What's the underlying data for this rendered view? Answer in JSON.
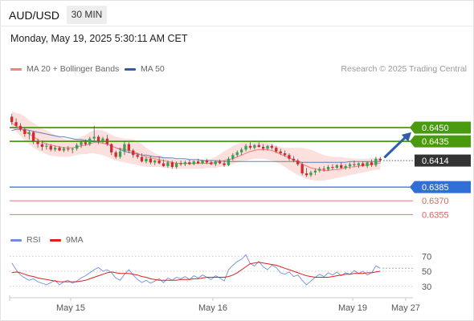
{
  "header": {
    "symbol": "AUD/USD",
    "timeframe": "30 MIN"
  },
  "datetime": "Monday, May 19, 2025 5:30:11 AM CET",
  "legend": {
    "ma20": {
      "label": "MA 20 + Bollinger Bands",
      "color": "#f4837d"
    },
    "ma50": {
      "label": "MA 50",
      "color": "#2e5fa8"
    },
    "rsi": {
      "label": "RSI",
      "color": "#6f8fe0"
    },
    "ma9": {
      "label": "9MA",
      "color": "#e02020"
    }
  },
  "credit": "Research © 2025 Trading Central",
  "chart_data": {
    "type": "candlestick",
    "price_range": [
      0.6343,
      0.6486
    ],
    "x_labels": [
      "May 15",
      "May 16",
      "May 19",
      "May 27"
    ],
    "candles": [
      [
        0.6462,
        0.6465,
        0.6453,
        0.6456
      ],
      [
        0.6456,
        0.646,
        0.645,
        0.6452
      ],
      [
        0.6452,
        0.6455,
        0.6446,
        0.6448
      ],
      [
        0.6448,
        0.645,
        0.644,
        0.6443
      ],
      [
        0.6443,
        0.6447,
        0.6437,
        0.6445
      ],
      [
        0.6445,
        0.6446,
        0.6432,
        0.6435
      ],
      [
        0.6435,
        0.6438,
        0.6428,
        0.6432
      ],
      [
        0.6432,
        0.6436,
        0.6425,
        0.6429
      ],
      [
        0.6429,
        0.6433,
        0.6426,
        0.643
      ],
      [
        0.643,
        0.6432,
        0.6424,
        0.6426
      ],
      [
        0.6426,
        0.643,
        0.6424,
        0.6428
      ],
      [
        0.6428,
        0.643,
        0.6424,
        0.6425
      ],
      [
        0.6425,
        0.6429,
        0.6423,
        0.6427
      ],
      [
        0.6427,
        0.643,
        0.6424,
        0.6426
      ],
      [
        0.6426,
        0.6428,
        0.6422,
        0.6427
      ],
      [
        0.6427,
        0.6433,
        0.6425,
        0.6431
      ],
      [
        0.6431,
        0.6436,
        0.6428,
        0.6434
      ],
      [
        0.6434,
        0.6437,
        0.643,
        0.6432
      ],
      [
        0.6432,
        0.644,
        0.643,
        0.6438
      ],
      [
        0.6438,
        0.6452,
        0.6435,
        0.644
      ],
      [
        0.644,
        0.6442,
        0.6432,
        0.6435
      ],
      [
        0.6435,
        0.644,
        0.6433,
        0.6438
      ],
      [
        0.6438,
        0.6442,
        0.643,
        0.6432
      ],
      [
        0.6432,
        0.6433,
        0.642,
        0.6423
      ],
      [
        0.6423,
        0.6425,
        0.6416,
        0.6418
      ],
      [
        0.6418,
        0.6428,
        0.6416,
        0.6424
      ],
      [
        0.6424,
        0.6435,
        0.642,
        0.6432
      ],
      [
        0.6432,
        0.6434,
        0.6422,
        0.6425
      ],
      [
        0.6425,
        0.6427,
        0.6417,
        0.642
      ],
      [
        0.642,
        0.6422,
        0.6416,
        0.6418
      ],
      [
        0.6418,
        0.6422,
        0.6412,
        0.6413
      ],
      [
        0.6413,
        0.6418,
        0.6411,
        0.6416
      ],
      [
        0.6416,
        0.6419,
        0.641,
        0.6412
      ],
      [
        0.6412,
        0.6415,
        0.6409,
        0.6414
      ],
      [
        0.6414,
        0.6418,
        0.641,
        0.6411
      ],
      [
        0.6411,
        0.6415,
        0.6407,
        0.6408
      ],
      [
        0.6408,
        0.6414,
        0.6406,
        0.6412
      ],
      [
        0.6412,
        0.6414,
        0.6405,
        0.6407
      ],
      [
        0.6407,
        0.6413,
        0.6405,
        0.6411
      ],
      [
        0.6411,
        0.6414,
        0.6408,
        0.641
      ],
      [
        0.641,
        0.6414,
        0.6408,
        0.6412
      ],
      [
        0.6412,
        0.6415,
        0.6409,
        0.641
      ],
      [
        0.641,
        0.6414,
        0.6409,
        0.6413
      ],
      [
        0.6413,
        0.6416,
        0.641,
        0.6411
      ],
      [
        0.6411,
        0.6415,
        0.641,
        0.6414
      ],
      [
        0.6414,
        0.6416,
        0.641,
        0.6412
      ],
      [
        0.6412,
        0.6414,
        0.6409,
        0.641
      ],
      [
        0.641,
        0.6414,
        0.6408,
        0.6413
      ],
      [
        0.6413,
        0.6415,
        0.641,
        0.6411
      ],
      [
        0.6411,
        0.6414,
        0.6407,
        0.6409
      ],
      [
        0.6409,
        0.6418,
        0.6408,
        0.6416
      ],
      [
        0.6416,
        0.6422,
        0.6414,
        0.642
      ],
      [
        0.642,
        0.6425,
        0.6418,
        0.6423
      ],
      [
        0.6423,
        0.6428,
        0.642,
        0.6426
      ],
      [
        0.6426,
        0.6432,
        0.6424,
        0.643
      ],
      [
        0.643,
        0.6434,
        0.6426,
        0.6428
      ],
      [
        0.6428,
        0.6432,
        0.6426,
        0.6431
      ],
      [
        0.6431,
        0.6434,
        0.6428,
        0.6429
      ],
      [
        0.6429,
        0.6432,
        0.6425,
        0.6427
      ],
      [
        0.6427,
        0.6431,
        0.6425,
        0.643
      ],
      [
        0.643,
        0.6432,
        0.6426,
        0.6428
      ],
      [
        0.6428,
        0.643,
        0.6422,
        0.6424
      ],
      [
        0.6424,
        0.6427,
        0.642,
        0.6422
      ],
      [
        0.6422,
        0.6425,
        0.6418,
        0.642
      ],
      [
        0.642,
        0.6422,
        0.6414,
        0.6416
      ],
      [
        0.6416,
        0.6419,
        0.6412,
        0.6414
      ],
      [
        0.6414,
        0.6416,
        0.6408,
        0.641
      ],
      [
        0.641,
        0.6412,
        0.6398,
        0.64
      ],
      [
        0.64,
        0.6406,
        0.6396,
        0.6398
      ],
      [
        0.6398,
        0.6403,
        0.6396,
        0.6401
      ],
      [
        0.6401,
        0.6405,
        0.6398,
        0.6403
      ],
      [
        0.6403,
        0.6407,
        0.6401,
        0.6405
      ],
      [
        0.6405,
        0.6408,
        0.6402,
        0.6404
      ],
      [
        0.6404,
        0.6409,
        0.6403,
        0.6407
      ],
      [
        0.6407,
        0.641,
        0.6404,
        0.6406
      ],
      [
        0.6406,
        0.641,
        0.6405,
        0.6409
      ],
      [
        0.6409,
        0.6412,
        0.6405,
        0.6406
      ],
      [
        0.6406,
        0.641,
        0.6404,
        0.6408
      ],
      [
        0.6408,
        0.6412,
        0.6405,
        0.641
      ],
      [
        0.641,
        0.6414,
        0.6407,
        0.6409
      ],
      [
        0.6409,
        0.6412,
        0.6406,
        0.6411
      ],
      [
        0.6411,
        0.6413,
        0.6407,
        0.6408
      ],
      [
        0.6408,
        0.6413,
        0.6406,
        0.6412
      ],
      [
        0.6412,
        0.6415,
        0.6407,
        0.6409
      ],
      [
        0.6409,
        0.6418,
        0.6407,
        0.6416
      ],
      [
        0.6416,
        0.6418,
        0.6412,
        0.6414
      ]
    ],
    "ma20": [
      0.6455,
      0.6452,
      0.6449,
      0.6446,
      0.6443,
      0.644,
      0.6437,
      0.6434,
      0.6432,
      0.6431,
      0.643,
      0.6429,
      0.6428,
      0.6428,
      0.6428,
      0.6429,
      0.643,
      0.6431,
      0.6432,
      0.6434,
      0.6434,
      0.6433,
      0.6432,
      0.643,
      0.6428,
      0.6427,
      0.6426,
      0.6425,
      0.6424,
      0.6422,
      0.642,
      0.6418,
      0.6417,
      0.6416,
      0.6415,
      0.6414,
      0.6413,
      0.6412,
      0.6411,
      0.6411,
      0.6411,
      0.6411,
      0.6411,
      0.6411,
      0.6411,
      0.6411,
      0.6411,
      0.6412,
      0.6413,
      0.6414,
      0.6415,
      0.6416,
      0.6418,
      0.642,
      0.6422,
      0.6424,
      0.6425,
      0.6426,
      0.6426,
      0.6426,
      0.6425,
      0.6423,
      0.6421,
      0.6419,
      0.6417,
      0.6415,
      0.6413,
      0.641,
      0.6408,
      0.6406,
      0.6405,
      0.6404,
      0.6403,
      0.6403,
      0.6404,
      0.6404,
      0.6405,
      0.6406,
      0.6407,
      0.6407,
      0.6408,
      0.6409,
      0.6409,
      0.641,
      0.6411,
      0.6411
    ],
    "upper_band": [
      0.6468,
      0.6466,
      0.6465,
      0.6462,
      0.6458,
      0.6455,
      0.6452,
      0.6449,
      0.6447,
      0.6444,
      0.6442,
      0.644,
      0.6438,
      0.6437,
      0.6437,
      0.6438,
      0.644,
      0.6442,
      0.6445,
      0.6447,
      0.6448,
      0.6447,
      0.6445,
      0.6442,
      0.644,
      0.6439,
      0.6438,
      0.6438,
      0.6437,
      0.6435,
      0.6432,
      0.6428,
      0.6425,
      0.6422,
      0.642,
      0.6418,
      0.6417,
      0.6416,
      0.6415,
      0.6415,
      0.6415,
      0.6415,
      0.6415,
      0.6415,
      0.6415,
      0.6415,
      0.6416,
      0.6418,
      0.6421,
      0.6424,
      0.6427,
      0.643,
      0.6432,
      0.6434,
      0.6435,
      0.6436,
      0.6436,
      0.6436,
      0.6435,
      0.6434,
      0.6432,
      0.643,
      0.6429,
      0.6428,
      0.6428,
      0.6428,
      0.6428,
      0.6428,
      0.6427,
      0.6426,
      0.6424,
      0.6422,
      0.642,
      0.6419,
      0.6418,
      0.6418,
      0.6418,
      0.6417,
      0.6417,
      0.6416,
      0.6416,
      0.6416,
      0.6416,
      0.6417,
      0.6417,
      0.6417
    ],
    "lower_band": [
      0.645,
      0.6446,
      0.6441,
      0.6436,
      0.6432,
      0.6428,
      0.6425,
      0.6423,
      0.6421,
      0.6419,
      0.6419,
      0.6418,
      0.6418,
      0.6418,
      0.6419,
      0.642,
      0.6421,
      0.6421,
      0.6422,
      0.6422,
      0.6421,
      0.642,
      0.6418,
      0.6416,
      0.6414,
      0.6413,
      0.6412,
      0.6411,
      0.641,
      0.6409,
      0.6408,
      0.6407,
      0.6407,
      0.6407,
      0.6407,
      0.6406,
      0.6406,
      0.6405,
      0.6405,
      0.6405,
      0.6405,
      0.6405,
      0.6405,
      0.6405,
      0.6405,
      0.6406,
      0.6406,
      0.6406,
      0.6407,
      0.6408,
      0.6409,
      0.641,
      0.6412,
      0.6413,
      0.6414,
      0.6415,
      0.6416,
      0.6416,
      0.6416,
      0.6415,
      0.6414,
      0.6412,
      0.641,
      0.6407,
      0.6404,
      0.6401,
      0.6398,
      0.6396,
      0.6394,
      0.6393,
      0.6392,
      0.6392,
      0.6392,
      0.6393,
      0.6394,
      0.6395,
      0.6396,
      0.6397,
      0.6398,
      0.6399,
      0.64,
      0.6401,
      0.6402,
      0.6403,
      0.6404,
      0.6404
    ],
    "ma50": [
      0.6447,
      0.6448,
      0.6448,
      0.6448,
      0.6447,
      0.6446,
      0.6445,
      0.6444,
      0.6443,
      0.6442,
      0.6441,
      0.644,
      0.644,
      0.6439,
      0.6438,
      0.6437,
      0.6437,
      0.6436,
      0.6436,
      0.6435,
      0.6434,
      0.6433,
      0.6432,
      0.643,
      0.6428,
      0.6426,
      0.6424,
      0.6423,
      0.6422,
      0.6421,
      0.642,
      0.642,
      0.6419,
      0.6418,
      0.6418,
      0.6417,
      0.6417,
      0.6417,
      0.6416,
      0.6416,
      0.6416,
      0.6415,
      0.6415,
      0.6415,
      0.6414,
      0.6414,
      0.6414,
      0.6414,
      0.6414,
      0.6413,
      0.6413,
      0.6413,
      0.6413,
      0.6413,
      0.6413,
      0.6413,
      0.6413,
      0.6413,
      0.6413,
      0.6413,
      0.6413,
      0.6413,
      0.6413,
      0.6413,
      0.6413,
      0.6413,
      0.6413,
      0.6412,
      0.6412,
      0.6412,
      0.6412,
      0.6412,
      0.6412,
      0.6412,
      0.6412,
      0.6412,
      0.6412,
      0.6412,
      0.6413,
      0.6413,
      0.6413,
      0.6413,
      0.6413,
      0.6413,
      0.6413,
      0.6413
    ],
    "levels": [
      {
        "value": 0.645,
        "label": "0.6450",
        "color": "#4a9a10",
        "kind": "resistance"
      },
      {
        "value": 0.6435,
        "label": "0.6435",
        "color": "#4a9a10",
        "kind": "resistance"
      },
      {
        "value": 0.6414,
        "label": "0.6414",
        "color": "#333333",
        "kind": "current"
      },
      {
        "value": 0.6385,
        "label": "0.6385",
        "color": "#2f6fd6",
        "kind": "pivot"
      },
      {
        "value": 0.637,
        "label": "0.6370",
        "color": "#e06060",
        "kind": "support"
      },
      {
        "value": 0.6355,
        "label": "0.6355",
        "color": "#e06060",
        "kind": "support"
      }
    ],
    "forecast": {
      "from": 0.6418,
      "to": 0.6445,
      "color": "#2e5fa8"
    },
    "rsi": {
      "range": [
        18,
        82
      ],
      "ticks": [
        70,
        50,
        30
      ],
      "values": [
        61,
        52,
        45,
        41,
        38,
        40,
        36,
        34,
        32,
        35,
        38,
        32,
        36,
        38,
        34,
        37,
        41,
        44,
        48,
        52,
        55,
        50,
        52,
        48,
        41,
        38,
        46,
        52,
        45,
        39,
        35,
        38,
        34,
        37,
        40,
        35,
        41,
        38,
        42,
        40,
        43,
        39,
        44,
        41,
        45,
        42,
        39,
        44,
        41,
        37,
        52,
        58,
        63,
        66,
        72,
        60,
        57,
        63,
        56,
        52,
        58,
        55,
        48,
        46,
        49,
        43,
        45,
        38,
        32,
        37,
        42,
        46,
        43,
        48,
        45,
        49,
        44,
        48,
        46,
        51,
        47,
        50,
        45,
        48,
        57,
        54
      ],
      "ma9": [
        48,
        49,
        48,
        46,
        44,
        43,
        41,
        40,
        39,
        38,
        37,
        36,
        36,
        36,
        36,
        36,
        37,
        38,
        40,
        42,
        44,
        46,
        48,
        49,
        48,
        47,
        47,
        47,
        46,
        45,
        43,
        42,
        40,
        39,
        38,
        38,
        38,
        38,
        38,
        39,
        39,
        39,
        40,
        40,
        41,
        42,
        42,
        42,
        42,
        42,
        43,
        45,
        48,
        52,
        56,
        60,
        61,
        62,
        61,
        60,
        59,
        58,
        56,
        54,
        52,
        50,
        48,
        46,
        44,
        43,
        42,
        42,
        42,
        42,
        43,
        44,
        45,
        46,
        46,
        47,
        47,
        47,
        48,
        48,
        49,
        50
      ]
    }
  }
}
